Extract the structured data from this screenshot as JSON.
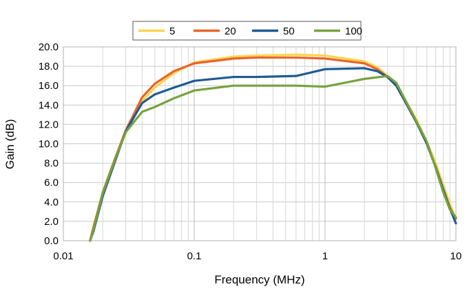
{
  "chart_data": {
    "type": "line",
    "xlabel": "Frequency (MHz)",
    "ylabel": "Gain (dB)",
    "xscale": "log",
    "xlim": [
      0.01,
      10
    ],
    "ylim": [
      0,
      20
    ],
    "x_ticks": [
      0.01,
      0.1,
      1,
      10
    ],
    "x_tick_labels": [
      "0.01",
      "0.1",
      "1",
      "10"
    ],
    "y_ticks": [
      0,
      2,
      4,
      6,
      8,
      10,
      12,
      14,
      16,
      18,
      20
    ],
    "y_tick_labels": [
      "0.0",
      "2.0",
      "4.0",
      "6.0",
      "8.0",
      "10.0",
      "12.0",
      "14.0",
      "16.0",
      "18.0",
      "20.0"
    ],
    "grid": true,
    "legend_position": "top",
    "series": [
      {
        "name": "5",
        "color": "#FFD34D",
        "points": [
          [
            0.016,
            0
          ],
          [
            0.017,
            1.5
          ],
          [
            0.02,
            4.8
          ],
          [
            0.025,
            8.5
          ],
          [
            0.03,
            11.2
          ],
          [
            0.04,
            14.4
          ],
          [
            0.05,
            15.8
          ],
          [
            0.07,
            17.3
          ],
          [
            0.1,
            18.4
          ],
          [
            0.2,
            19.0
          ],
          [
            0.3,
            19.1
          ],
          [
            0.6,
            19.2
          ],
          [
            1,
            19.1
          ],
          [
            2,
            18.5
          ],
          [
            2.5,
            17.9
          ],
          [
            3,
            17.0
          ],
          [
            3.5,
            16.2
          ],
          [
            4,
            14.8
          ],
          [
            5,
            12.5
          ],
          [
            6,
            10.2
          ],
          [
            7,
            8.0
          ],
          [
            8,
            5.8
          ],
          [
            9,
            3.8
          ],
          [
            10,
            2.2
          ]
        ]
      },
      {
        "name": "20",
        "color": "#E8652A",
        "points": [
          [
            0.016,
            0
          ],
          [
            0.017,
            1.4
          ],
          [
            0.02,
            5.0
          ],
          [
            0.025,
            8.6
          ],
          [
            0.03,
            11.4
          ],
          [
            0.04,
            14.8
          ],
          [
            0.05,
            16.2
          ],
          [
            0.07,
            17.5
          ],
          [
            0.1,
            18.3
          ],
          [
            0.2,
            18.8
          ],
          [
            0.3,
            18.9
          ],
          [
            0.6,
            18.9
          ],
          [
            1,
            18.8
          ],
          [
            2,
            18.3
          ],
          [
            2.5,
            17.7
          ],
          [
            3,
            16.9
          ],
          [
            3.5,
            16.0
          ],
          [
            4,
            14.6
          ],
          [
            5,
            12.2
          ],
          [
            6,
            10.0
          ],
          [
            7,
            7.6
          ],
          [
            8,
            5.3
          ],
          [
            9,
            3.4
          ],
          [
            10,
            2.3
          ]
        ]
      },
      {
        "name": "50",
        "color": "#1F5A96",
        "points": [
          [
            0.016,
            0
          ],
          [
            0.017,
            1.0
          ],
          [
            0.02,
            4.6
          ],
          [
            0.025,
            8.3
          ],
          [
            0.03,
            11.3
          ],
          [
            0.04,
            14.2
          ],
          [
            0.05,
            15.1
          ],
          [
            0.07,
            15.8
          ],
          [
            0.1,
            16.5
          ],
          [
            0.2,
            16.9
          ],
          [
            0.3,
            16.9
          ],
          [
            0.6,
            17.0
          ],
          [
            1,
            17.7
          ],
          [
            2,
            17.8
          ],
          [
            2.5,
            17.5
          ],
          [
            3,
            16.9
          ],
          [
            3.5,
            16.0
          ],
          [
            4,
            14.6
          ],
          [
            5,
            12.2
          ],
          [
            6,
            10.0
          ],
          [
            7,
            7.6
          ],
          [
            8,
            5.3
          ],
          [
            9,
            3.3
          ],
          [
            10,
            1.8
          ]
        ]
      },
      {
        "name": "100",
        "color": "#76A23C",
        "points": [
          [
            0.016,
            0
          ],
          [
            0.017,
            1.2
          ],
          [
            0.02,
            4.9
          ],
          [
            0.025,
            8.5
          ],
          [
            0.03,
            11.2
          ],
          [
            0.04,
            13.3
          ],
          [
            0.05,
            13.8
          ],
          [
            0.07,
            14.7
          ],
          [
            0.1,
            15.5
          ],
          [
            0.2,
            16.0
          ],
          [
            0.3,
            16.0
          ],
          [
            0.6,
            16.0
          ],
          [
            1,
            15.9
          ],
          [
            2,
            16.7
          ],
          [
            3,
            17.0
          ],
          [
            3.5,
            16.3
          ],
          [
            4,
            14.8
          ],
          [
            5,
            12.3
          ],
          [
            6,
            10.2
          ],
          [
            7,
            7.5
          ],
          [
            8,
            5.0
          ],
          [
            9,
            3.2
          ],
          [
            10,
            2.4
          ]
        ]
      }
    ]
  }
}
